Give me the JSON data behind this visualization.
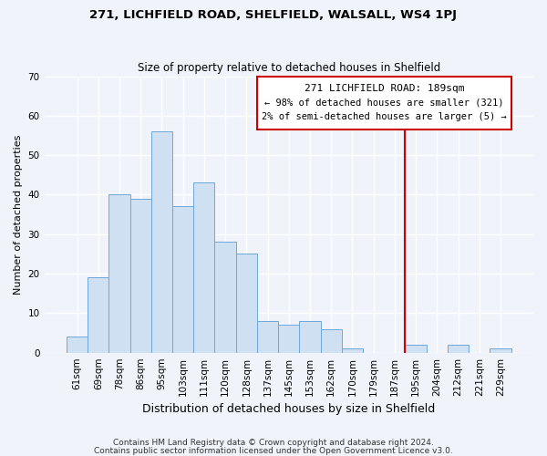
{
  "title": "271, LICHFIELD ROAD, SHELFIELD, WALSALL, WS4 1PJ",
  "subtitle": "Size of property relative to detached houses in Shelfield",
  "xlabel": "Distribution of detached houses by size in Shelfield",
  "ylabel": "Number of detached properties",
  "bar_labels": [
    "61sqm",
    "69sqm",
    "78sqm",
    "86sqm",
    "95sqm",
    "103sqm",
    "111sqm",
    "120sqm",
    "128sqm",
    "137sqm",
    "145sqm",
    "153sqm",
    "162sqm",
    "170sqm",
    "179sqm",
    "187sqm",
    "195sqm",
    "204sqm",
    "212sqm",
    "221sqm",
    "229sqm"
  ],
  "bar_values": [
    4,
    19,
    40,
    39,
    56,
    37,
    43,
    28,
    25,
    8,
    7,
    8,
    6,
    1,
    0,
    0,
    2,
    0,
    2,
    0,
    1
  ],
  "bar_color": "#cfe0f3",
  "bar_edge_color": "#6ea8d8",
  "highlight_line_index": 15,
  "highlight_line_color": "#cc0000",
  "ylim": [
    0,
    70
  ],
  "yticks": [
    0,
    10,
    20,
    30,
    40,
    50,
    60,
    70
  ],
  "annotation_title": "271 LICHFIELD ROAD: 189sqm",
  "annotation_line1": "← 98% of detached houses are smaller (321)",
  "annotation_line2": "2% of semi-detached houses are larger (5) →",
  "annotation_box_color": "#ffffff",
  "annotation_box_edge": "#cc0000",
  "footnote1": "Contains HM Land Registry data © Crown copyright and database right 2024.",
  "footnote2": "Contains public sector information licensed under the Open Government Licence v3.0.",
  "bg_color": "#f0f4fa",
  "grid_color": "#ffffff",
  "title_fontsize": 9.5,
  "subtitle_fontsize": 8.5,
  "ylabel_fontsize": 8,
  "xlabel_fontsize": 9,
  "tick_fontsize": 7.5,
  "footnote_fontsize": 6.5
}
